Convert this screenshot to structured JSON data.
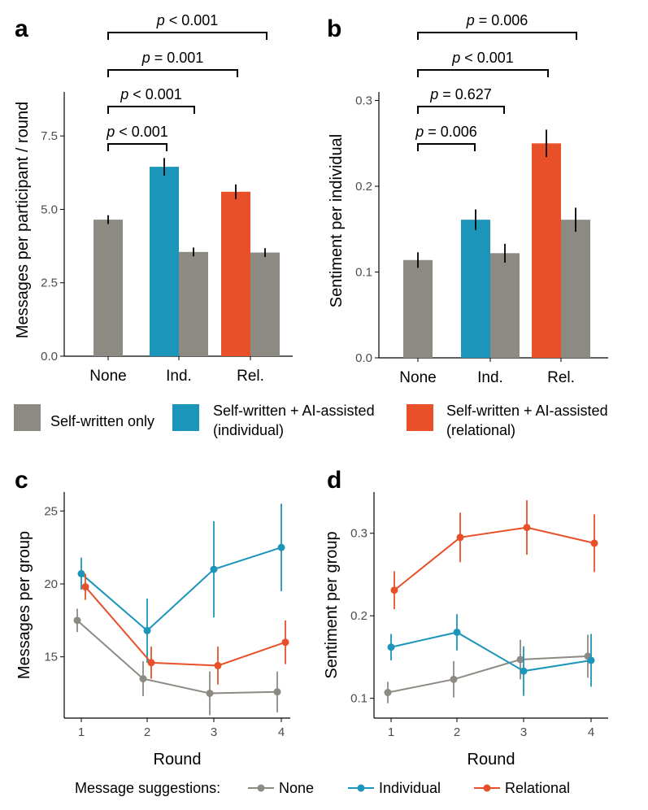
{
  "colors": {
    "none": "#8c8a82",
    "individual": "#1c95bb",
    "relational": "#e8502a",
    "axis": "#000000"
  },
  "legend_top": {
    "items": [
      {
        "key": "none",
        "lines": [
          "Self-written only"
        ]
      },
      {
        "key": "individual",
        "lines": [
          "Self-written + AI-assisted",
          "(individual)"
        ]
      },
      {
        "key": "relational",
        "lines": [
          "Self-written + AI-assisted",
          "(relational)"
        ]
      }
    ]
  },
  "legend_bottom": {
    "title": "Message suggestions:",
    "items": [
      {
        "key": "none",
        "label": "None"
      },
      {
        "key": "individual",
        "label": "Individual"
      },
      {
        "key": "relational",
        "label": "Relational"
      }
    ]
  },
  "chart_data": [
    {
      "panel": "a",
      "type": "bar",
      "ylabel": "Messages per participant / round",
      "ylim": [
        0,
        9
      ],
      "yticks": [
        0,
        2.5,
        5,
        7.5
      ],
      "ytick_labels": [
        "0.0",
        "2.5",
        "5.0",
        "7.5"
      ],
      "categories": [
        "None",
        "Ind.",
        "Rel."
      ],
      "bars": [
        {
          "category": "None",
          "type": "none",
          "value": 4.65,
          "err": 0.15
        },
        {
          "category": "Ind.",
          "type": "individual",
          "value": 6.45,
          "err": 0.3
        },
        {
          "category": "Ind.",
          "type": "none",
          "value": 3.55,
          "err": 0.15
        },
        {
          "category": "Rel.",
          "type": "relational",
          "value": 5.6,
          "err": 0.25
        },
        {
          "category": "Rel.",
          "type": "none",
          "value": 3.53,
          "err": 0.15
        }
      ],
      "comparisons": [
        {
          "from": "None",
          "to": "Ind.",
          "text": "p < 0.001"
        },
        {
          "from": "None",
          "to": "Ind. self",
          "text": "p < 0.001"
        },
        {
          "from": "None",
          "to": "Rel.",
          "text": "p = 0.001"
        },
        {
          "from": "None",
          "to": "Rel. self",
          "text": "p < 0.001"
        }
      ]
    },
    {
      "panel": "b",
      "type": "bar",
      "ylabel": "Sentiment per individual",
      "ylim": [
        0,
        0.31
      ],
      "yticks": [
        0,
        0.1,
        0.2,
        0.3
      ],
      "ytick_labels": [
        "0.0",
        "0.1",
        "0.2",
        "0.3"
      ],
      "categories": [
        "None",
        "Ind.",
        "Rel."
      ],
      "bars": [
        {
          "category": "None",
          "type": "none",
          "value": 0.114,
          "err": 0.009
        },
        {
          "category": "Ind.",
          "type": "individual",
          "value": 0.161,
          "err": 0.012
        },
        {
          "category": "Ind.",
          "type": "none",
          "value": 0.122,
          "err": 0.011
        },
        {
          "category": "Rel.",
          "type": "relational",
          "value": 0.25,
          "err": 0.016
        },
        {
          "category": "Rel.",
          "type": "none",
          "value": 0.161,
          "err": 0.014
        }
      ],
      "comparisons": [
        {
          "from": "None",
          "to": "Ind.",
          "text": "p = 0.006"
        },
        {
          "from": "None",
          "to": "Ind. self",
          "text": "p = 0.627"
        },
        {
          "from": "None",
          "to": "Rel.",
          "text": "p < 0.001"
        },
        {
          "from": "None",
          "to": "Rel. self",
          "text": "p = 0.006"
        }
      ]
    },
    {
      "panel": "c",
      "type": "line",
      "xlabel": "Round",
      "ylabel": "Messages per group",
      "x": [
        1,
        2,
        3,
        4
      ],
      "xlim": [
        0.75,
        4.25
      ],
      "ylim": [
        10.8,
        26.3
      ],
      "yticks": [
        15,
        20,
        25
      ],
      "series": [
        {
          "name": "None",
          "key": "none",
          "values": [
            17.5,
            13.5,
            12.5,
            12.6
          ],
          "err": [
            0.8,
            1.2,
            1.5,
            1.4
          ]
        },
        {
          "name": "Individual",
          "key": "individual",
          "values": [
            20.7,
            16.8,
            21.0,
            22.5
          ],
          "err": [
            1.1,
            2.2,
            3.3,
            3.0
          ]
        },
        {
          "name": "Relational",
          "key": "relational",
          "values": [
            19.8,
            14.6,
            14.4,
            16.0
          ],
          "err": [
            0.9,
            1.1,
            1.3,
            1.5
          ]
        }
      ]
    },
    {
      "panel": "d",
      "type": "line",
      "xlabel": "Round",
      "ylabel": "Sentiment per group",
      "x": [
        1,
        2,
        3,
        4
      ],
      "xlim": [
        0.75,
        4.25
      ],
      "ylim": [
        0.076,
        0.35
      ],
      "yticks": [
        0.1,
        0.2,
        0.3
      ],
      "series": [
        {
          "name": "None",
          "key": "none",
          "values": [
            0.107,
            0.123,
            0.147,
            0.151
          ],
          "err": [
            0.013,
            0.022,
            0.024,
            0.026
          ]
        },
        {
          "name": "Individual",
          "key": "individual",
          "values": [
            0.162,
            0.18,
            0.133,
            0.146
          ],
          "err": [
            0.016,
            0.022,
            0.03,
            0.032
          ]
        },
        {
          "name": "Relational",
          "key": "relational",
          "values": [
            0.231,
            0.295,
            0.307,
            0.288
          ],
          "err": [
            0.023,
            0.03,
            0.033,
            0.035
          ]
        }
      ]
    }
  ]
}
